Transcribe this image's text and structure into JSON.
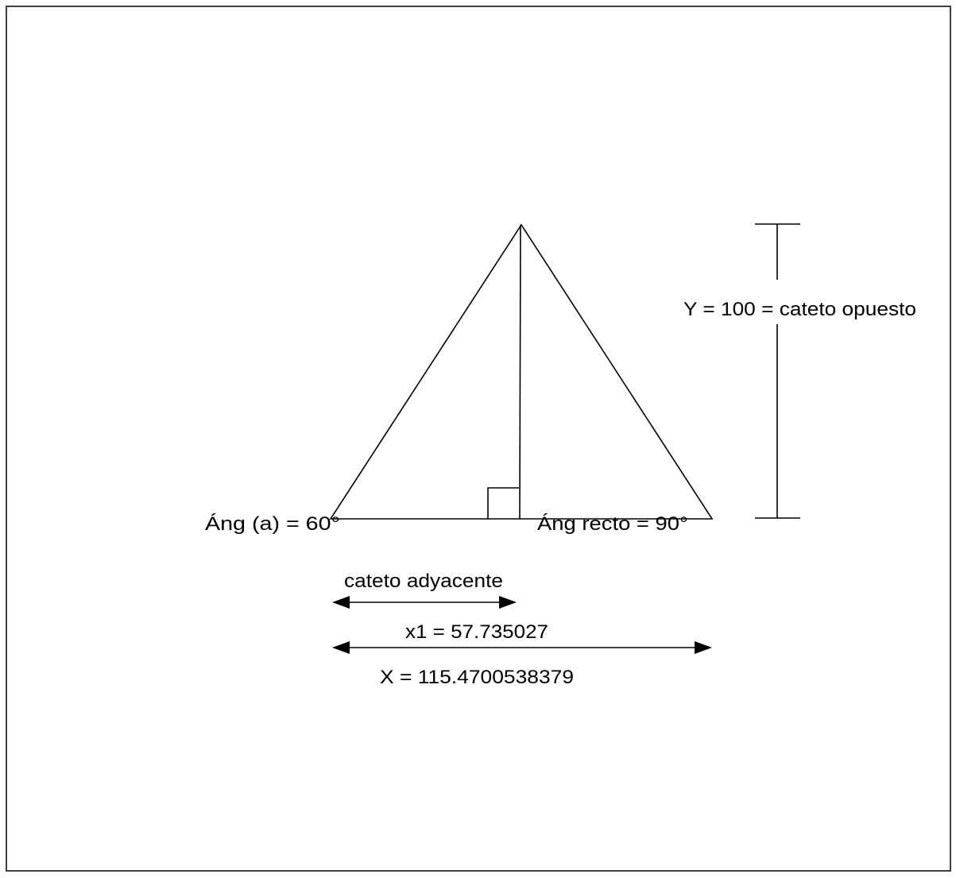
{
  "labels": {
    "angle_a": "Áng  (a) = 60°",
    "angle_right": "Áng  recto = 90°",
    "opposite": "Y = 100 = cateto opuesto",
    "adjacent": "cateto adyacente",
    "x1": "x1 = 57.735027",
    "X": "X = 115.4700538379"
  }
}
